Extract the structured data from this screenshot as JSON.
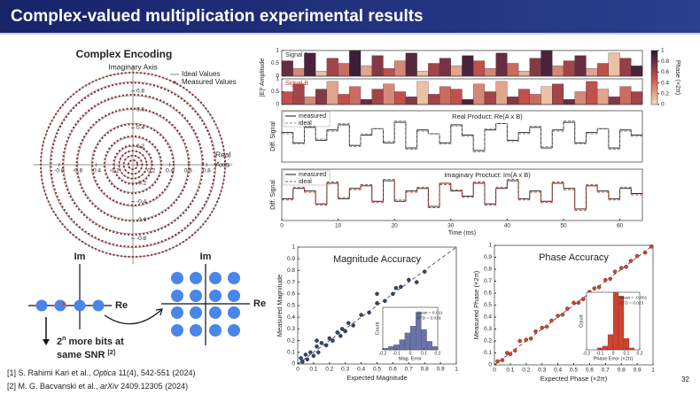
{
  "header": {
    "title": "Complex-valued multiplication experimental results",
    "page": "32"
  },
  "chart_data": [
    {
      "type": "polar",
      "title": "Complex Encoding",
      "ylabel": "Imaginary Axis",
      "xlabel": [
        "Real",
        "Axis"
      ],
      "xticks": [
        -0.8,
        -0.6,
        -0.4,
        -0.2,
        0.2,
        0.4,
        0.6,
        0.8
      ],
      "yticks": [
        0.8,
        0.6,
        0.4,
        0.2,
        -0.2,
        -0.4,
        -0.6,
        -0.8
      ],
      "series": [
        {
          "name": "Ideal Values",
          "color": "#9a9a9a",
          "values": [
            0.05,
            0.1,
            0.15,
            0.2,
            0.3,
            0.45,
            0.6,
            0.75,
            0.9,
            1.0
          ]
        },
        {
          "name": "Measured Values",
          "color": "#8b3030",
          "values": [
            0.05,
            0.1,
            0.15,
            0.21,
            0.31,
            0.44,
            0.61,
            0.76,
            0.89,
            1.0
          ]
        }
      ]
    },
    {
      "type": "bar",
      "ylabel": "|E|² Amplitude",
      "colorbar_label": "Phase (×2π)",
      "colormap": [
        "#f7dcb8",
        "#c0504d",
        "#2b1838"
      ],
      "xlim": [
        0,
        64
      ],
      "ylim": [
        0,
        1
      ],
      "yticks": [
        0,
        0.5,
        1
      ],
      "cticks": [
        0,
        0.2,
        0.4,
        0.6,
        0.8,
        1
      ],
      "x": [
        0,
        2,
        4,
        6,
        8,
        10,
        12,
        14,
        16,
        18,
        20,
        22,
        24,
        26,
        28,
        30,
        32,
        34,
        36,
        38,
        40,
        42,
        44,
        46,
        48,
        50,
        52,
        54,
        56,
        58,
        60,
        62
      ],
      "series": [
        {
          "name": "Signal A",
          "color": "#333333",
          "values": [
            0.6,
            0.3,
            0.9,
            0.2,
            0.7,
            0.5,
            1.0,
            0.4,
            0.8,
            0.3,
            0.6,
            0.9,
            0.2,
            0.5,
            0.7,
            0.4,
            0.8,
            0.6,
            0.3,
            0.9,
            0.5,
            0.2,
            0.7,
            1.0,
            0.4,
            0.6,
            0.8,
            0.3,
            0.5,
            0.9,
            0.7,
            0.4
          ],
          "phases": [
            0.8,
            0.3,
            0.9,
            0.1,
            0.6,
            0.4,
            0.95,
            0.2,
            0.7,
            0.5,
            0.3,
            0.85,
            0.1,
            0.6,
            0.75,
            0.2,
            0.9,
            0.5,
            0.3,
            0.8,
            0.4,
            0.15,
            0.7,
            0.9,
            0.3,
            0.6,
            0.8,
            0.2,
            0.5,
            0.1,
            0.65,
            0.9
          ]
        },
        {
          "name": "Signal B",
          "color": "#c0392b",
          "values": [
            0.5,
            0.8,
            0.3,
            0.6,
            0.9,
            0.4,
            0.7,
            0.2,
            0.6,
            0.8,
            0.5,
            0.3,
            0.9,
            0.4,
            0.7,
            0.6,
            0.2,
            0.8,
            0.5,
            0.9,
            0.3,
            0.6,
            0.4,
            0.7,
            0.8,
            0.2,
            0.5,
            0.9,
            0.6,
            0.3,
            0.7,
            0.5
          ],
          "phases": [
            0.5,
            0.6,
            0.3,
            0.7,
            0.2,
            0.5,
            0.4,
            0.8,
            0.6,
            0.3,
            0.5,
            0.7,
            0.1,
            0.6,
            0.4,
            0.5,
            0.9,
            0.3,
            0.6,
            0.2,
            0.7,
            0.5,
            0.4,
            0.1,
            0.6,
            0.8,
            0.3,
            0.5,
            0.2,
            0.7,
            0.4,
            0.6
          ]
        }
      ]
    },
    {
      "type": "line",
      "title": "Real Product: Re(A x B)",
      "ylabel": "Diff. Signal",
      "xlim": [
        0,
        64
      ],
      "ylim": [
        -1,
        1
      ],
      "x": [
        0,
        2,
        4,
        6,
        8,
        10,
        12,
        14,
        16,
        18,
        20,
        22,
        24,
        26,
        28,
        30,
        32,
        34,
        36,
        38,
        40,
        42,
        44,
        46,
        48,
        50,
        52,
        54,
        56,
        58,
        60,
        62
      ],
      "series": [
        {
          "name": "measured",
          "color": "#111111",
          "style": "solid",
          "values": [
            0.15,
            -0.25,
            0.35,
            -0.15,
            0.25,
            0.45,
            -0.35,
            0.05,
            0.3,
            -0.25,
            0.55,
            -0.45,
            0.25,
            0.1,
            -0.25,
            0.45,
            0.05,
            -0.55,
            0.25,
            0.5,
            -0.15,
            0.15,
            0.35,
            -0.45,
            0.25,
            0.55,
            -0.25,
            0.15,
            0.3,
            -0.45,
            0.25,
            0.05
          ]
        },
        {
          "name": "ideal",
          "color": "#888888",
          "style": "dashed",
          "values": [
            0.1,
            -0.3,
            0.4,
            -0.1,
            0.2,
            0.5,
            -0.4,
            0.1,
            0.3,
            -0.2,
            0.6,
            -0.5,
            0.2,
            0.1,
            -0.3,
            0.4,
            0.0,
            -0.6,
            0.3,
            0.5,
            -0.2,
            0.1,
            0.4,
            -0.4,
            0.2,
            0.6,
            -0.3,
            0.1,
            0.3,
            -0.5,
            0.2,
            0.0
          ]
        }
      ]
    },
    {
      "type": "line",
      "title": "Imaginary Proctuct: Im(A x B)",
      "ylabel": "Diff. Signal",
      "xlabel": "Time (ms)",
      "xlim": [
        0,
        64
      ],
      "ylim": [
        -1,
        1
      ],
      "xticks": [
        0,
        10,
        20,
        30,
        40,
        50,
        60
      ],
      "x": [
        0,
        2,
        4,
        6,
        8,
        10,
        12,
        14,
        16,
        18,
        20,
        22,
        24,
        26,
        28,
        30,
        32,
        34,
        36,
        38,
        40,
        42,
        44,
        46,
        48,
        50,
        52,
        54,
        56,
        58,
        60,
        62
      ],
      "series": [
        {
          "name": "measured",
          "color": "#111111",
          "style": "solid",
          "values": [
            -0.15,
            0.25,
            0.15,
            -0.35,
            0.45,
            -0.15,
            0.25,
            0.35,
            -0.25,
            0.55,
            -0.25,
            0.15,
            0.25,
            -0.45,
            0.45,
            0.15,
            -0.05,
            0.45,
            -0.35,
            0.25,
            0.55,
            -0.15,
            0.15,
            -0.25,
            0.45,
            0.25,
            -0.55,
            0.35,
            0.15,
            -0.15,
            0.25,
            0.05
          ]
        },
        {
          "name": "ideal",
          "color": "#c0392b",
          "style": "dashed",
          "values": [
            -0.2,
            0.3,
            0.1,
            -0.4,
            0.5,
            -0.1,
            0.2,
            0.4,
            -0.3,
            0.6,
            -0.2,
            0.1,
            0.3,
            -0.5,
            0.4,
            0.2,
            -0.1,
            0.5,
            -0.4,
            0.3,
            0.6,
            -0.2,
            0.1,
            -0.3,
            0.5,
            0.2,
            -0.6,
            0.4,
            0.1,
            -0.2,
            0.3,
            0.0
          ]
        }
      ]
    },
    {
      "type": "scatter",
      "title": "Magnitude Accuracy",
      "xlabel": "Expected Magnitude",
      "ylabel": "Measured Magnitude",
      "color": "#34456e",
      "edgecolor": "#1c2540",
      "xlim": [
        0,
        1
      ],
      "ylim": [
        0,
        1
      ],
      "xticks": [
        0,
        0.1,
        0.2,
        0.3,
        0.4,
        0.5,
        0.6,
        0.7,
        0.8,
        0.9,
        1
      ],
      "yticks": [
        0,
        0.1,
        0.2,
        0.3,
        0.4,
        0.5,
        0.6,
        0.7,
        0.8,
        0.9,
        1
      ],
      "x": [
        0.02,
        0.03,
        0.05,
        0.06,
        0.08,
        0.1,
        0.12,
        0.13,
        0.15,
        0.18,
        0.2,
        0.22,
        0.25,
        0.27,
        0.3,
        0.32,
        0.35,
        0.4,
        0.45,
        0.5,
        0.55,
        0.6,
        0.65,
        0.7,
        0.75,
        0.8,
        0.12,
        0.28,
        0.5,
        0.62
      ],
      "values": [
        0.05,
        0.02,
        0.08,
        0.04,
        0.1,
        0.07,
        0.15,
        0.1,
        0.18,
        0.16,
        0.22,
        0.2,
        0.27,
        0.24,
        0.28,
        0.35,
        0.33,
        0.42,
        0.44,
        0.52,
        0.54,
        0.6,
        0.66,
        0.72,
        0.7,
        0.79,
        0.2,
        0.3,
        0.6,
        0.65
      ],
      "inset": {
        "type": "histogram",
        "xlabel": "Mag. Error",
        "ylabel": "Count",
        "color": "#6a73a8",
        "annotations": [
          "Mean = 0.011",
          "STD = 0.039"
        ],
        "ylim": [
          0,
          25
        ],
        "xlim": [
          -0.2,
          0.2
        ],
        "xticks": [
          -0.2,
          -0.1,
          0,
          0.1,
          0.2
        ],
        "bins": [
          -0.2,
          -0.16,
          -0.12,
          -0.08,
          -0.04,
          0,
          0.04,
          0.08,
          0.12,
          0.16,
          0.2
        ],
        "values": [
          1,
          2,
          3,
          6,
          10,
          14,
          22,
          12,
          5,
          2
        ]
      }
    },
    {
      "type": "scatter",
      "title": "Phase Accuracy",
      "xlabel": "Expected Phase (×2π)",
      "ylabel": "Measured Phase (×2π)",
      "color": "#d0432f",
      "edgecolor": "#5a1a10",
      "xlim": [
        0,
        1
      ],
      "ylim": [
        0,
        1
      ],
      "xticks": [
        0,
        0.1,
        0.2,
        0.3,
        0.4,
        0.5,
        0.6,
        0.7,
        0.8,
        0.9,
        1
      ],
      "yticks": [
        0,
        0.1,
        0.2,
        0.3,
        0.4,
        0.5,
        0.6,
        0.7,
        0.8,
        0.9,
        1
      ],
      "x": [
        0.02,
        0.05,
        0.08,
        0.1,
        0.13,
        0.16,
        0.2,
        0.23,
        0.26,
        0.3,
        0.33,
        0.36,
        0.4,
        0.43,
        0.46,
        0.5,
        0.53,
        0.56,
        0.6,
        0.63,
        0.66,
        0.7,
        0.73,
        0.76,
        0.8,
        0.83,
        0.86,
        0.9,
        0.95,
        0.99
      ],
      "values": [
        0.03,
        0.04,
        0.1,
        0.09,
        0.12,
        0.2,
        0.21,
        0.22,
        0.28,
        0.31,
        0.32,
        0.37,
        0.41,
        0.42,
        0.47,
        0.52,
        0.52,
        0.55,
        0.61,
        0.64,
        0.65,
        0.71,
        0.72,
        0.78,
        0.81,
        0.82,
        0.87,
        0.91,
        0.94,
        0.99
      ],
      "inset": {
        "type": "histogram",
        "xlabel": "Phase Error (×2π)",
        "ylabel": "Count",
        "color": "#d0432f",
        "annotations": [
          "Mean = -0.001",
          "STD = 0.023"
        ],
        "ylim": [
          0,
          30
        ],
        "xlim": [
          -0.2,
          0.2
        ],
        "xticks": [
          -0.2,
          -0.1,
          0,
          0.1,
          0.2
        ],
        "bins": [
          -0.2,
          -0.16,
          -0.12,
          -0.08,
          -0.04,
          0,
          0.04,
          0.08,
          0.12,
          0.16,
          0.2
        ],
        "values": [
          0,
          0,
          1,
          2,
          8,
          30,
          28,
          6,
          1,
          0
        ]
      }
    }
  ],
  "diagram": {
    "left_im": "Im",
    "left_re": "Re",
    "right_im": "Im",
    "right_re": "Re",
    "base": "2",
    "exp": "n",
    "line1": " more bits at",
    "line2": "same SNR ",
    "ref": "[2]"
  },
  "references": [
    {
      "pre": "[1] S. Rahimi Kari et al., ",
      "journal": "Optica",
      "post": " 11(4), 542-551 (2024)"
    },
    {
      "pre": "[2] M. G. Bacvanski et al., ",
      "journal": "arXiv",
      "post": " 2409.12305 (2024)"
    }
  ]
}
